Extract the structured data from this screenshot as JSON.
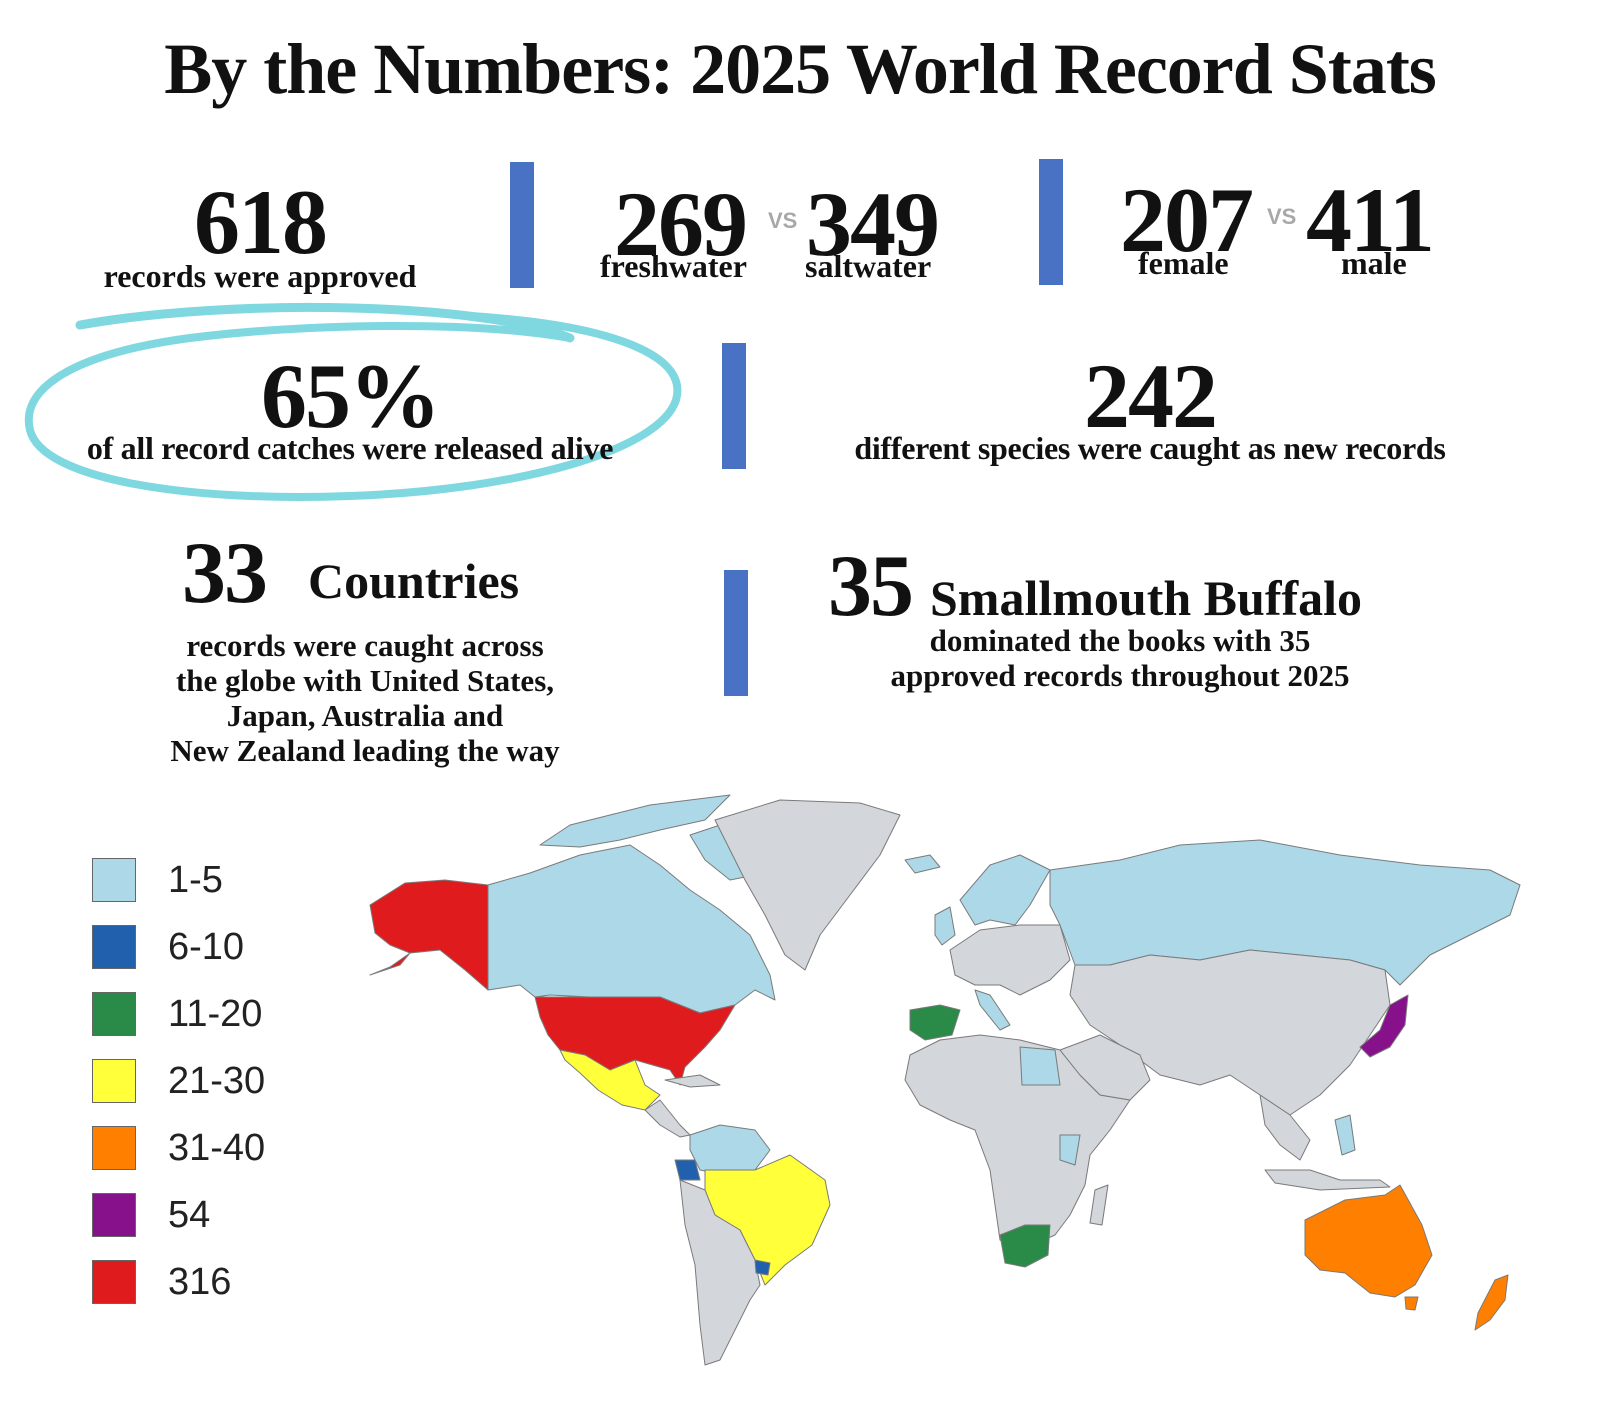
{
  "title": "By the Numbers: 2025 World Record Stats",
  "stats": {
    "approved": {
      "value": "618",
      "label": "records were approved"
    },
    "water": {
      "fresh_value": "269",
      "vs": "VS",
      "salt_value": "349",
      "fresh_label": "freshwater",
      "salt_label": "saltwater"
    },
    "gender": {
      "female_value": "207",
      "vs": "VS",
      "male_value": "411",
      "female_label": "female",
      "male_label": "male"
    },
    "released": {
      "value": "65%",
      "label": "of all record catches were released alive"
    },
    "species": {
      "value": "242",
      "label": "different species were caught as new records"
    },
    "countries": {
      "value": "33",
      "heading": "Countries",
      "lines": [
        "records were caught across",
        "the globe with United States,",
        "Japan, Australia and",
        "New Zealand leading the way"
      ]
    },
    "buffalo": {
      "value": "35",
      "heading": "Smallmouth Buffalo",
      "lines": [
        "dominated the books with 35",
        "approved records throughout 2025"
      ]
    }
  },
  "colors": {
    "bar": "#4a72c4",
    "circle": "#7fd8e0",
    "none": "#d3d6da",
    "land_border": "#7a7a7a"
  },
  "legend": [
    {
      "label": "1-5",
      "color": "#acd8e8"
    },
    {
      "label": "6-10",
      "color": "#2160ad"
    },
    {
      "label": "11-20",
      "color": "#2a8a47"
    },
    {
      "label": "21-30",
      "color": "#ffff3a"
    },
    {
      "label": "31-40",
      "color": "#ff7f00"
    },
    {
      "label": "54",
      "color": "#86118a"
    },
    {
      "label": "316",
      "color": "#e01b1e"
    }
  ]
}
